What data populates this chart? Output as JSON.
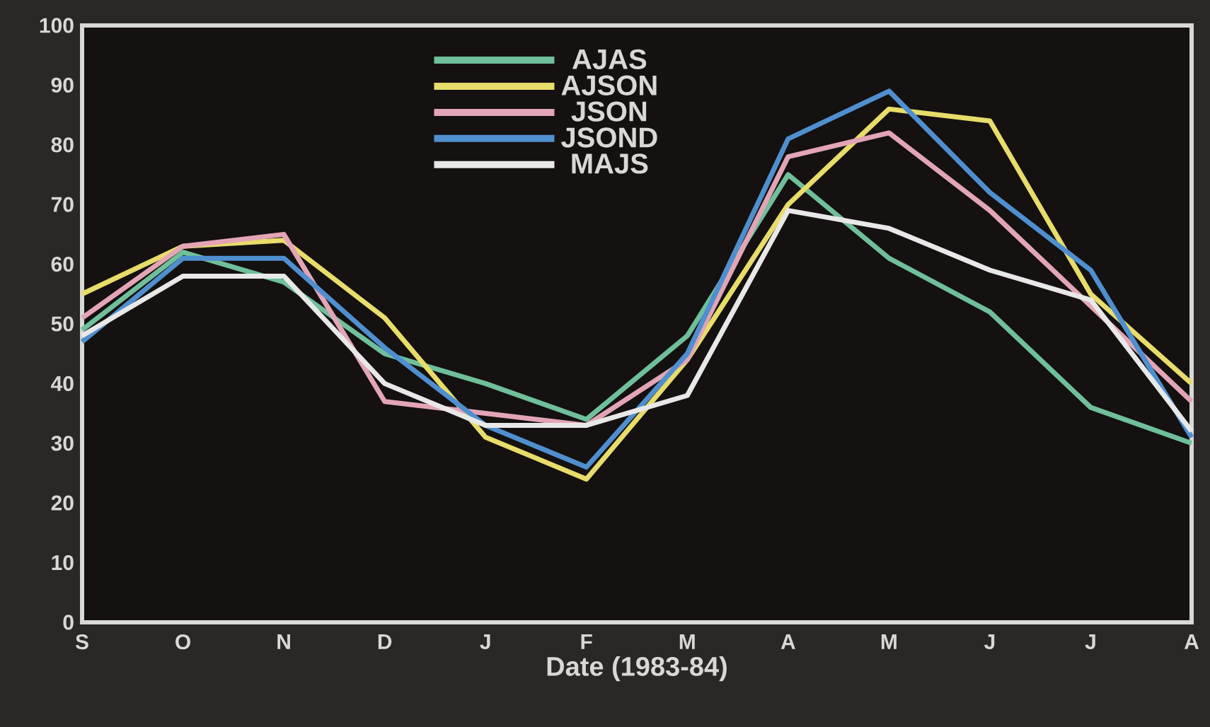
{
  "chart_data": {
    "type": "line",
    "xlabel": "Date (1983-84)",
    "categories": [
      "S",
      "O",
      "N",
      "D",
      "J",
      "F",
      "M",
      "A",
      "M",
      "J",
      "J",
      "A"
    ],
    "series": [
      {
        "name": "AJAS",
        "color": "#6fbf9a",
        "values": [
          49,
          62,
          57,
          45,
          40,
          34,
          48,
          75,
          61,
          52,
          36,
          30
        ]
      },
      {
        "name": "AJSON",
        "color": "#e8dc6a",
        "values": [
          55,
          63,
          64,
          51,
          31,
          24,
          44,
          70,
          86,
          84,
          55,
          40
        ]
      },
      {
        "name": "JSON",
        "color": "#e3a5b5",
        "values": [
          51,
          63,
          65,
          37,
          35,
          33,
          44,
          78,
          82,
          69,
          53,
          37
        ]
      },
      {
        "name": "JSOND",
        "color": "#4f8fcf",
        "values": [
          47,
          61,
          61,
          46,
          33,
          26,
          45,
          81,
          89,
          72,
          59,
          31
        ]
      },
      {
        "name": "MAJS",
        "color": "#e8e8e8",
        "values": [
          48,
          58,
          58,
          40,
          33,
          33,
          38,
          69,
          66,
          59,
          54,
          32
        ]
      }
    ],
    "ylim": [
      0,
      100
    ],
    "yticks": [
      0,
      10,
      20,
      30,
      40,
      50,
      60,
      70,
      80,
      90,
      100
    ],
    "legend": "top",
    "grid": false
  }
}
